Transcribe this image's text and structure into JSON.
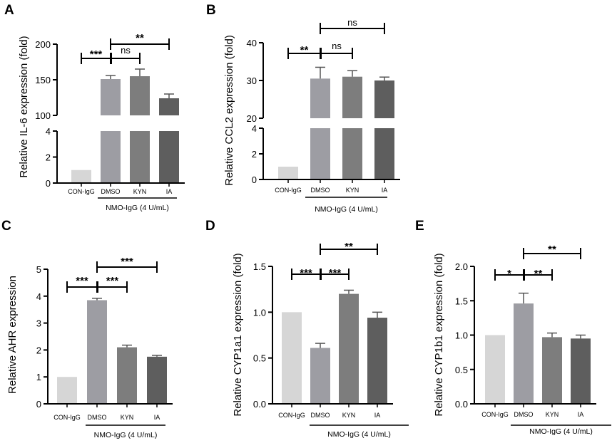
{
  "figure": {
    "bar_colors": [
      "#d6d6d6",
      "#9d9da3",
      "#7d7d7d",
      "#5e5e5e"
    ],
    "axis_color": "#000000"
  },
  "chart_data": [
    {
      "id": "A",
      "letter": "A",
      "type": "bar",
      "ylabel": "Relative IL-6 expression (fold)",
      "categories": [
        "CON-IgG",
        "DMSO",
        "KYN",
        "IA"
      ],
      "group_label": "NMO-IgG (4 U/mL)",
      "values": [
        1,
        151,
        155,
        124
      ],
      "errors": [
        0,
        5,
        10,
        6
      ],
      "axis_break": true,
      "lower_ylim": [
        0,
        4
      ],
      "lower_ticks": [
        0,
        2,
        4
      ],
      "upper_ylim": [
        100,
        200
      ],
      "upper_ticks": [
        100,
        150,
        200
      ],
      "significance": [
        {
          "from": 0,
          "to": 1,
          "label": "***"
        },
        {
          "from": 1,
          "to": 2,
          "label": "ns"
        },
        {
          "from": 1,
          "to": 3,
          "label": "**"
        }
      ]
    },
    {
      "id": "B",
      "letter": "B",
      "type": "bar",
      "ylabel": "Relative CCL2 expression (fold)",
      "categories": [
        "CON-IgG",
        "DMSO",
        "KYN",
        "IA"
      ],
      "group_label": "NMO-IgG (4 U/mL)",
      "values": [
        1,
        30.5,
        31,
        30
      ],
      "errors": [
        0,
        3,
        1.6,
        0.9
      ],
      "axis_break": true,
      "lower_ylim": [
        0,
        4
      ],
      "lower_ticks": [
        0,
        2,
        4
      ],
      "upper_ylim": [
        20,
        40
      ],
      "upper_ticks": [
        20,
        30,
        40
      ],
      "significance": [
        {
          "from": 0,
          "to": 1,
          "label": "**"
        },
        {
          "from": 1,
          "to": 2,
          "label": "ns"
        },
        {
          "from": 1,
          "to": 3,
          "label": "ns"
        }
      ]
    },
    {
      "id": "C",
      "letter": "C",
      "type": "bar",
      "ylabel": "Relative AHR expression",
      "categories": [
        "CON-IgG",
        "DMSO",
        "KYN",
        "IA"
      ],
      "group_label": "NMO-IgG (4 U/mL)",
      "values": [
        1,
        3.85,
        2.1,
        1.75
      ],
      "errors": [
        0,
        0.07,
        0.08,
        0.05
      ],
      "axis_break": false,
      "ylim": [
        0,
        5
      ],
      "ticks": [
        0,
        1,
        2,
        3,
        4,
        5
      ],
      "tick_labels": [
        "0",
        "1",
        "2",
        "3",
        "4",
        "5"
      ],
      "significance": [
        {
          "from": 0,
          "to": 1,
          "label": "***"
        },
        {
          "from": 1,
          "to": 2,
          "label": "***"
        },
        {
          "from": 1,
          "to": 3,
          "label": "***"
        }
      ]
    },
    {
      "id": "D",
      "letter": "D",
      "type": "bar",
      "ylabel": "Relative CYP1a1 expression (fold)",
      "categories": [
        "CON-IgG",
        "DMSO",
        "KYN",
        "IA"
      ],
      "group_label": "NMO-IgG (4 U/mL)",
      "values": [
        1.0,
        0.61,
        1.2,
        0.94
      ],
      "errors": [
        0,
        0.05,
        0.04,
        0.06
      ],
      "axis_break": false,
      "ylim": [
        0,
        1.5
      ],
      "ticks": [
        0,
        0.5,
        1.0,
        1.5
      ],
      "tick_labels": [
        "0.0",
        "0.5",
        "1.0",
        "1.5"
      ],
      "significance": [
        {
          "from": 0,
          "to": 1,
          "label": "***"
        },
        {
          "from": 1,
          "to": 2,
          "label": "***"
        },
        {
          "from": 1,
          "to": 3,
          "label": "**"
        }
      ]
    },
    {
      "id": "E",
      "letter": "E",
      "type": "bar",
      "ylabel": "Relative CYP1b1 expression (fold)",
      "categories": [
        "CON-IgG",
        "DMSO",
        "KYN",
        "IA"
      ],
      "group_label": "NMO-IgG (4 U/mL)",
      "values": [
        1.0,
        1.46,
        0.97,
        0.95
      ],
      "errors": [
        0,
        0.15,
        0.06,
        0.05
      ],
      "axis_break": false,
      "ylim": [
        0,
        2.0
      ],
      "ticks": [
        0,
        0.5,
        1.0,
        1.5,
        2.0
      ],
      "tick_labels": [
        "0.0",
        "0.5",
        "1.0",
        "1.5",
        "2.0"
      ],
      "significance": [
        {
          "from": 0,
          "to": 1,
          "label": "*"
        },
        {
          "from": 1,
          "to": 2,
          "label": "**"
        },
        {
          "from": 1,
          "to": 3,
          "label": "**"
        }
      ]
    }
  ]
}
